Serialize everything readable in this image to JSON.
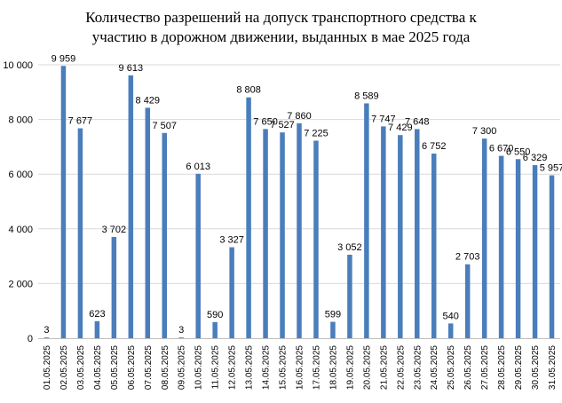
{
  "chart_data": {
    "type": "bar",
    "title": "Количество разрешений на допуск транспортного средства к участию в дорожном движении, выданных в мае 2025 года",
    "title_lines": [
      "Количество разрешений на допуск транспортного средства к",
      "участию в дорожном движении, выданных в мае 2025 года"
    ],
    "xlabel": "",
    "ylabel": "",
    "ylim": [
      0,
      10000
    ],
    "yticks": [
      0,
      2000,
      4000,
      6000,
      8000,
      10000
    ],
    "ytick_labels": [
      "0",
      "2 000",
      "4 000",
      "6 000",
      "8 000",
      "10 000"
    ],
    "grid": true,
    "legend": "none",
    "bar_color": "#4a7ebb",
    "categories": [
      "01.05.2025",
      "02.05.2025",
      "03.05.2025",
      "04.05.2025",
      "05.05.2025",
      "06.05.2025",
      "07.05.2025",
      "08.05.2025",
      "09.05.2025",
      "10.05.2025",
      "11.05.2025",
      "12.05.2025",
      "13.05.2025",
      "14.05.2025",
      "15.05.2025",
      "16.05.2025",
      "17.05.2025",
      "18.05.2025",
      "19.05.2025",
      "20.05.2025",
      "21.05.2025",
      "22.05.2025",
      "23.05.2025",
      "24.05.2025",
      "25.05.2025",
      "26.05.2025",
      "27.05.2025",
      "28.05.2025",
      "29.05.2025",
      "30.05.2025",
      "31.05.2025"
    ],
    "values": [
      3,
      9959,
      7677,
      623,
      3702,
      9613,
      8429,
      7507,
      3,
      6013,
      590,
      3327,
      8808,
      7650,
      7527,
      7860,
      7225,
      599,
      3052,
      8589,
      7747,
      7429,
      7648,
      6752,
      540,
      2703,
      7300,
      6670,
      6550,
      6329,
      5957
    ],
    "data_labels": [
      "3",
      "9 959",
      "7 677",
      "623",
      "3 702",
      "9 613",
      "8 429",
      "7 507",
      "3",
      "6 013",
      "590",
      "3 327",
      "8 808",
      "7 650",
      "7 527",
      "7 860",
      "7 225",
      "599",
      "3 052",
      "8 589",
      "7 747",
      "7 429",
      "7 648",
      "6 752",
      "540",
      "2 703",
      "7 300",
      "6 670",
      "6 550",
      "6 329",
      "5 957"
    ]
  }
}
